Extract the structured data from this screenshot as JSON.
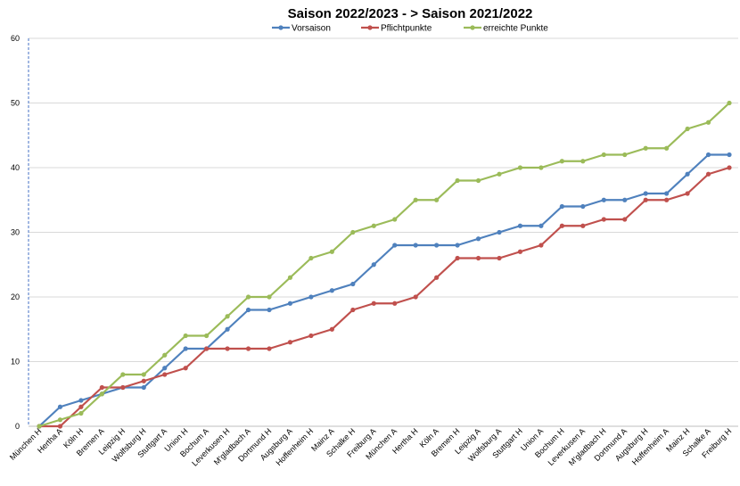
{
  "chart_data": {
    "type": "line",
    "title": "Saison 2022/2023 - > Saison 2021/2022",
    "xlabel": "",
    "ylabel": "",
    "ylim": [
      0,
      60
    ],
    "yticks": [
      0,
      10,
      20,
      30,
      40,
      50,
      60
    ],
    "grid": true,
    "legend": "top",
    "categories": [
      "München H",
      "Hertha A",
      "Köln H",
      "Bremen A",
      "Leipzig H",
      "Wolfsburg H",
      "Stuttgart A",
      "Union H",
      "Bochum A",
      "Leverkusen H",
      "M'gladbach A",
      "Dortmund H",
      "Augsburg A",
      "Hoffenheim H",
      "Mainz A",
      "Schalke H",
      "Freiburg A",
      "München A",
      "Hertha H",
      "Köln A",
      "Bremen H",
      "Leipzig A",
      "Wolfsburg A",
      "Stuttgart H",
      "Union A",
      "Bochum H",
      "Leverkusen A",
      "M'gladbach H",
      "Dortmund A",
      "Augsburg H",
      "Hoffenheim A",
      "Mainz H",
      "Schalke A",
      "Freiburg H"
    ],
    "series": [
      {
        "name": "Vorsaison",
        "color": "#4f81bd",
        "values": [
          0,
          3,
          4,
          5,
          6,
          6,
          9,
          12,
          12,
          15,
          18,
          18,
          19,
          20,
          21,
          22,
          25,
          28,
          28,
          28,
          28,
          29,
          30,
          31,
          31,
          34,
          34,
          35,
          35,
          36,
          36,
          39,
          42,
          42
        ]
      },
      {
        "name": "Pflichtpunkte",
        "color": "#c0504d",
        "values": [
          0,
          0,
          3,
          6,
          6,
          7,
          8,
          9,
          12,
          12,
          12,
          12,
          13,
          14,
          15,
          18,
          19,
          19,
          20,
          23,
          26,
          26,
          26,
          27,
          28,
          31,
          31,
          32,
          32,
          35,
          35,
          36,
          39,
          40
        ]
      },
      {
        "name": "erreichte Punkte",
        "color": "#9bbb59",
        "values": [
          0,
          1,
          2,
          5,
          8,
          8,
          11,
          14,
          14,
          17,
          20,
          20,
          23,
          26,
          27,
          30,
          31,
          32,
          35,
          35,
          38,
          38,
          39,
          40,
          40,
          41,
          41,
          42,
          42,
          43,
          43,
          46,
          47,
          50
        ]
      }
    ]
  }
}
